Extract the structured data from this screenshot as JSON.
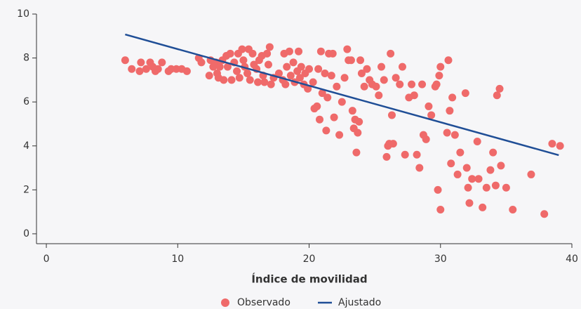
{
  "chart_data": {
    "type": "scatter",
    "xlabel": "Índice de movilidad",
    "xlim": [
      -0.75,
      40
    ],
    "ylim": [
      -0.45,
      10
    ],
    "xticks": [
      0,
      10,
      20,
      30,
      40
    ],
    "yticks": [
      0,
      2,
      4,
      6,
      8,
      10
    ],
    "grid": false,
    "legend": "bottom",
    "series": [
      {
        "name": "Observado",
        "type": "scatter",
        "color": "#ef6a6a",
        "x": [
          6.0,
          6.5,
          7.1,
          7.2,
          7.6,
          7.9,
          8.1,
          8.3,
          8.5,
          8.8,
          9.3,
          9.5,
          9.9,
          10.3,
          10.7,
          11.6,
          11.8,
          12.4,
          12.5,
          12.7,
          12.9,
          13.0,
          13.1,
          13.2,
          13.4,
          13.5,
          13.7,
          13.8,
          14.0,
          14.1,
          14.3,
          14.5,
          14.6,
          14.7,
          14.9,
          15.0,
          15.1,
          15.3,
          15.4,
          15.5,
          15.7,
          15.8,
          16.0,
          16.1,
          16.2,
          16.4,
          16.5,
          16.6,
          16.8,
          16.9,
          17.0,
          17.1,
          17.3,
          17.7,
          18.0,
          18.1,
          18.2,
          18.3,
          18.5,
          18.6,
          18.8,
          18.9,
          19.1,
          19.2,
          19.3,
          19.4,
          19.6,
          19.7,
          19.9,
          20.0,
          20.3,
          20.4,
          20.6,
          20.7,
          20.8,
          20.9,
          21.0,
          21.2,
          21.3,
          21.4,
          21.5,
          21.7,
          21.8,
          21.9,
          22.1,
          22.3,
          22.5,
          22.7,
          22.9,
          23.0,
          23.2,
          23.3,
          23.4,
          23.5,
          23.6,
          23.7,
          23.8,
          23.9,
          24.0,
          24.2,
          24.4,
          24.6,
          24.8,
          25.1,
          25.3,
          25.5,
          25.7,
          25.9,
          26.0,
          26.1,
          26.2,
          26.3,
          26.4,
          26.6,
          26.9,
          27.1,
          27.3,
          27.6,
          27.8,
          28.0,
          28.2,
          28.4,
          28.6,
          28.7,
          28.9,
          29.1,
          29.3,
          29.6,
          29.7,
          29.8,
          29.9,
          30.0,
          30.0,
          30.5,
          30.6,
          30.7,
          30.8,
          30.9,
          31.1,
          31.3,
          31.5,
          31.9,
          32.0,
          32.1,
          32.2,
          32.4,
          32.8,
          32.9,
          33.2,
          33.5,
          33.8,
          34.0,
          34.2,
          34.3,
          34.5,
          34.6,
          35.0,
          35.5,
          36.9,
          37.9,
          38.5,
          39.1
        ],
        "values": [
          7.9,
          7.5,
          7.4,
          7.8,
          7.5,
          7.8,
          7.6,
          7.4,
          7.5,
          7.8,
          7.4,
          7.5,
          7.5,
          7.5,
          7.4,
          8.0,
          7.8,
          7.2,
          7.9,
          7.6,
          7.8,
          7.3,
          7.1,
          7.6,
          7.9,
          7.0,
          8.1,
          7.6,
          8.2,
          7.0,
          7.8,
          7.4,
          8.2,
          7.1,
          8.4,
          7.9,
          7.6,
          7.3,
          8.4,
          7.0,
          8.2,
          7.7,
          7.5,
          6.9,
          7.9,
          8.1,
          7.2,
          6.9,
          8.2,
          7.7,
          8.5,
          6.8,
          7.1,
          7.3,
          7.0,
          8.2,
          6.8,
          7.6,
          8.3,
          7.2,
          7.8,
          6.9,
          7.4,
          8.3,
          7.1,
          7.6,
          6.8,
          7.3,
          6.6,
          7.5,
          6.9,
          5.7,
          5.8,
          7.5,
          5.2,
          8.3,
          6.4,
          7.3,
          4.7,
          6.2,
          8.2,
          7.2,
          8.2,
          5.3,
          6.7,
          4.5,
          6.0,
          7.1,
          8.4,
          7.9,
          7.9,
          5.6,
          4.8,
          5.2,
          3.7,
          4.6,
          5.1,
          7.9,
          7.3,
          6.7,
          7.5,
          7.0,
          6.8,
          6.7,
          6.3,
          7.6,
          7.0,
          3.5,
          4.0,
          4.1,
          8.2,
          5.4,
          4.1,
          7.1,
          6.8,
          7.6,
          3.6,
          6.2,
          6.8,
          6.3,
          3.6,
          3.0,
          6.8,
          4.5,
          4.3,
          5.8,
          5.4,
          6.7,
          6.8,
          2.0,
          7.2,
          7.6,
          1.1,
          4.6,
          7.9,
          5.6,
          3.2,
          6.2,
          4.5,
          2.7,
          3.7,
          6.4,
          3.0,
          2.1,
          1.4,
          2.5,
          4.2,
          2.5,
          1.2,
          2.1,
          2.9,
          3.7,
          2.2,
          6.3,
          6.6,
          3.1,
          2.1,
          1.1,
          2.7,
          0.9,
          4.1,
          4.0
        ]
      },
      {
        "name": "Ajustado",
        "type": "line",
        "color": "#1f4e96",
        "x": [
          6,
          39
        ],
        "values": [
          9.07,
          3.58
        ]
      }
    ]
  }
}
